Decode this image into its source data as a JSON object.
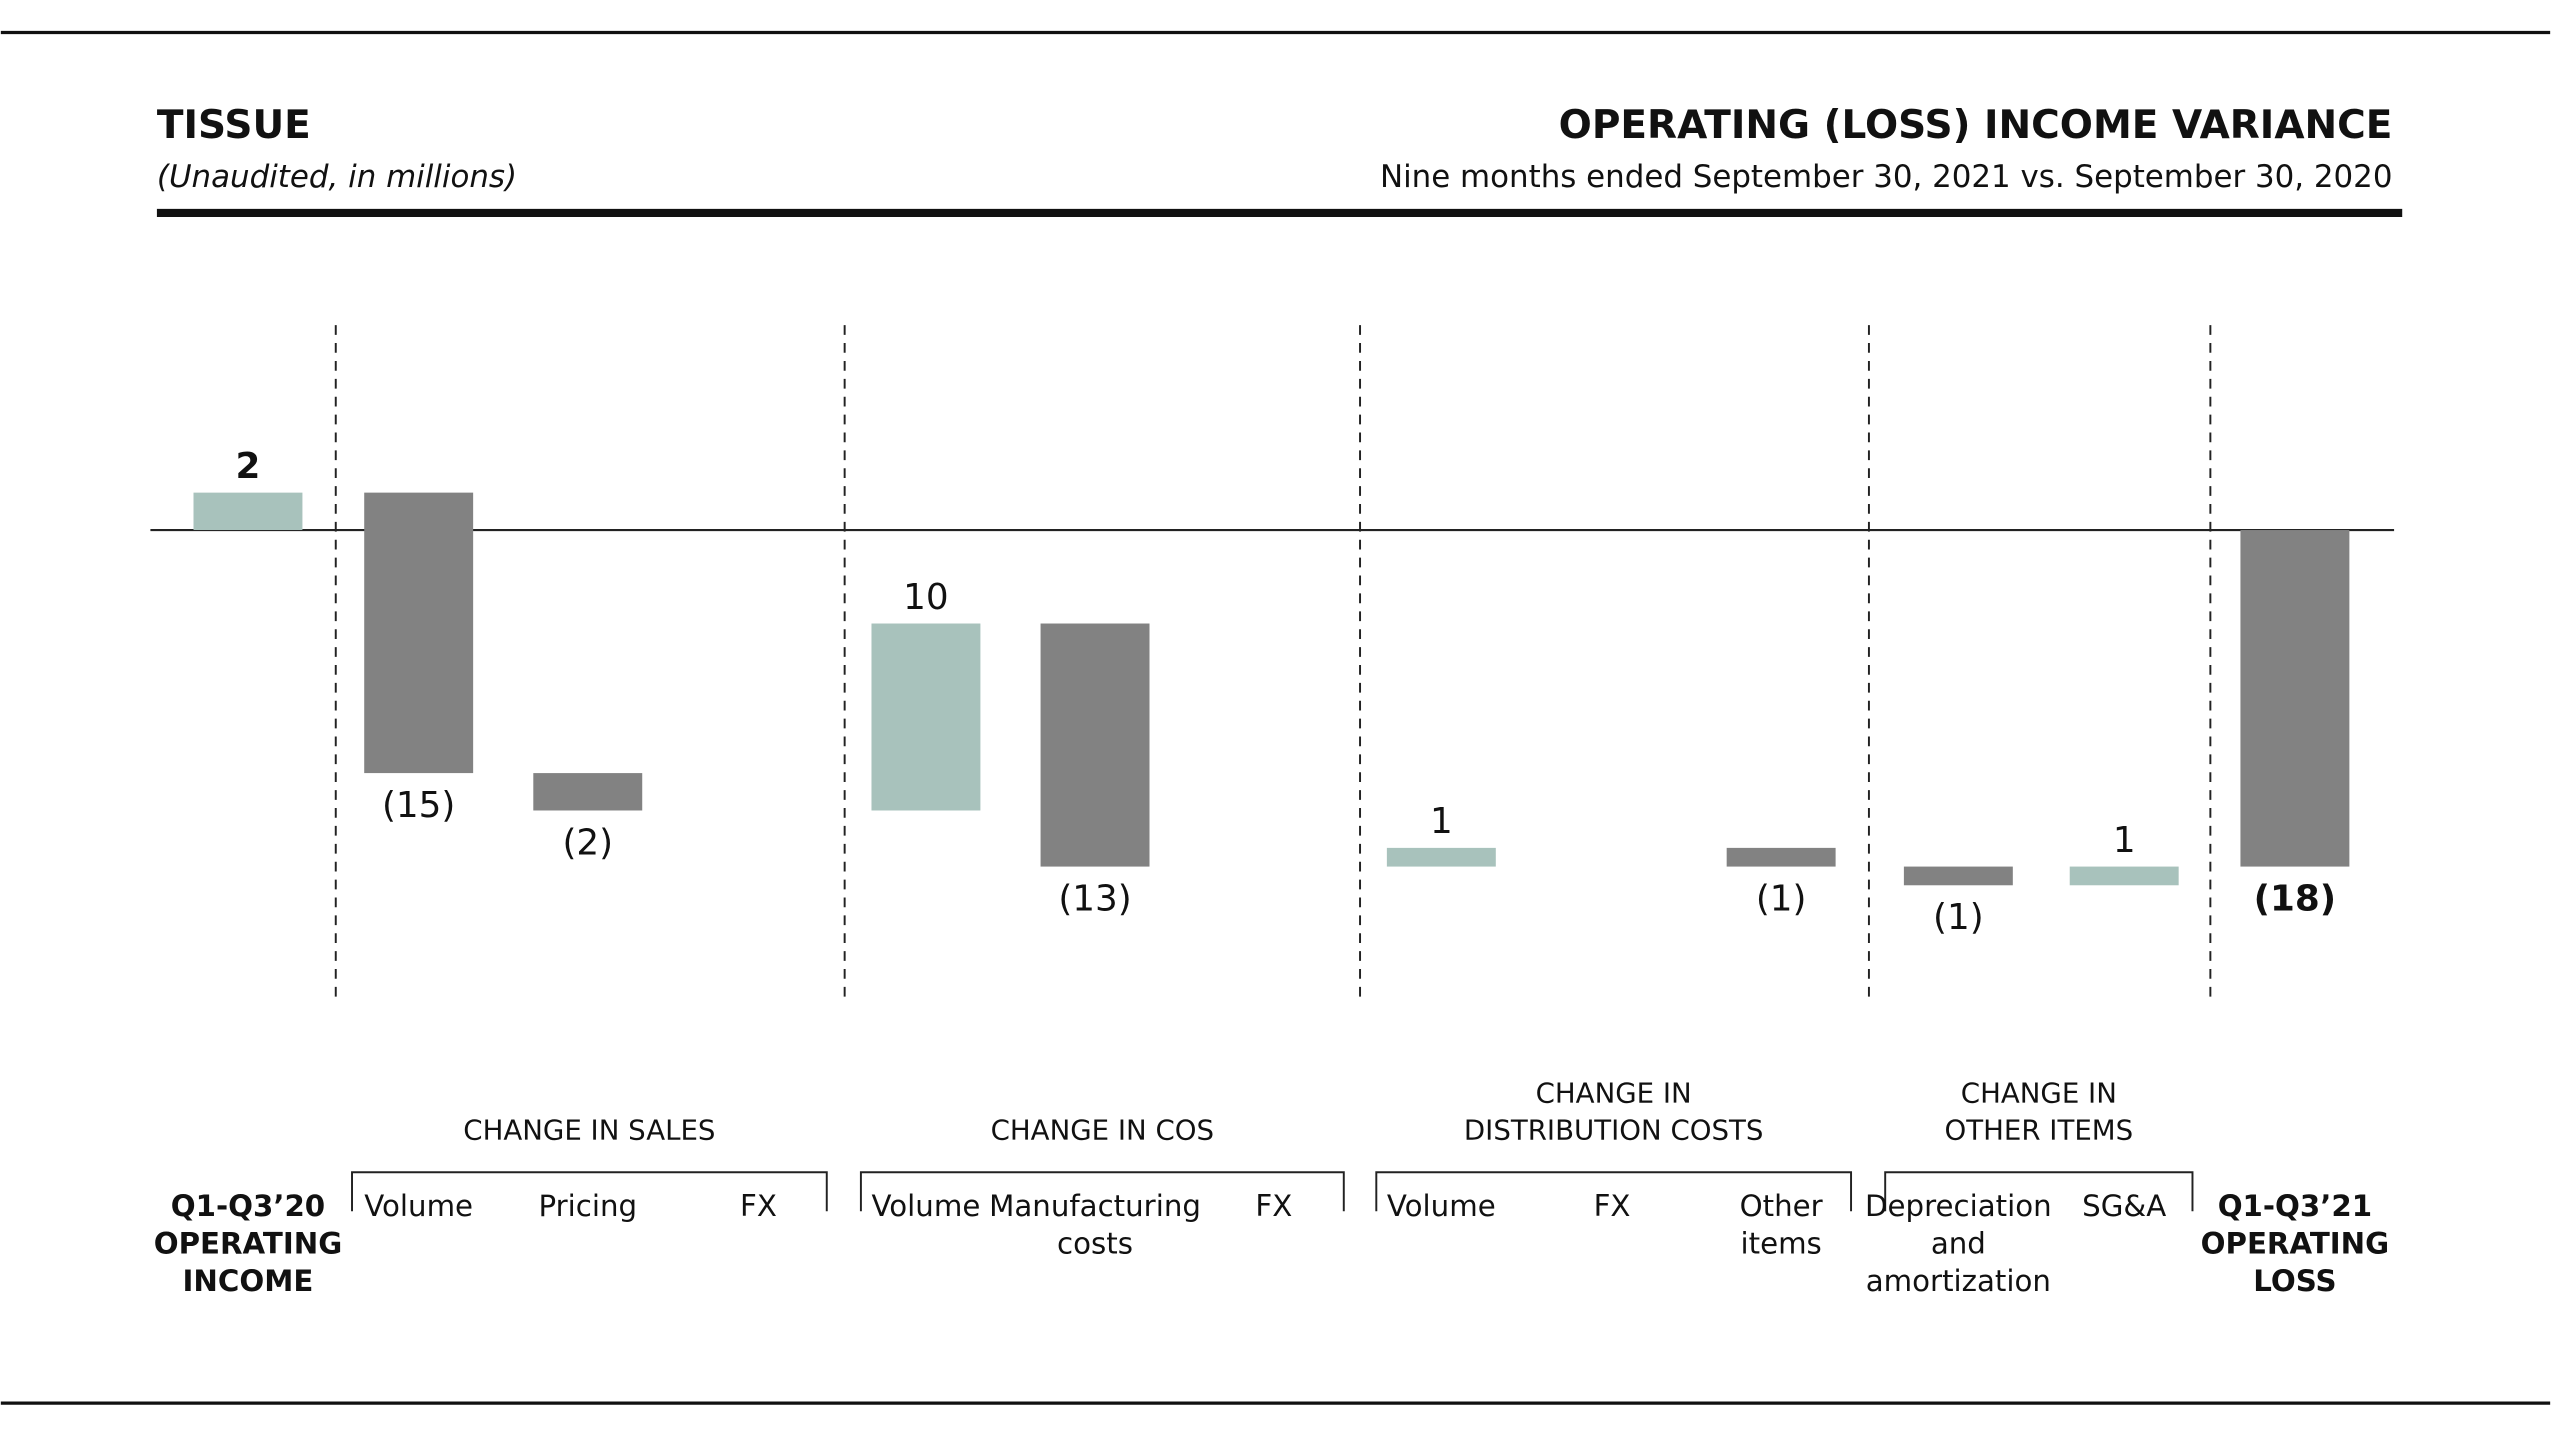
{
  "header": {
    "title": "TISSUE",
    "subtitle": "(Unaudited, in millions)",
    "right_title": "OPERATING (LOSS) INCOME VARIANCE",
    "right_subtitle": "Nine months ended September 30, 2021 vs. September 30, 2020"
  },
  "chart_data": {
    "type": "waterfall",
    "categories": [
      [
        "Q1-Q3’20",
        "OPERATING",
        "INCOME"
      ],
      [
        "Volume"
      ],
      [
        "Pricing"
      ],
      [
        "FX"
      ],
      [
        "Volume"
      ],
      [
        "Manufacturing",
        "costs"
      ],
      [
        "FX"
      ],
      [
        "Volume"
      ],
      [
        "FX"
      ],
      [
        "Other",
        "items"
      ],
      [
        "Depreciation",
        "and",
        "amortization"
      ],
      [
        "SG&A"
      ],
      [
        "Q1-Q3’21",
        "OPERATING",
        "LOSS"
      ]
    ],
    "values": [
      2,
      -15,
      -2,
      0,
      10,
      -13,
      0,
      1,
      0,
      -1,
      -1,
      1,
      -18
    ],
    "value_labels": [
      "2",
      "(15)",
      "(2)",
      null,
      "10",
      "(13)",
      null,
      "1",
      null,
      "(1)",
      "(1)",
      "1",
      "(18)"
    ],
    "is_total": [
      true,
      false,
      false,
      false,
      false,
      false,
      false,
      false,
      false,
      false,
      false,
      false,
      true
    ],
    "groups": [
      [
        "CHANGE IN SALES"
      ],
      [
        "CHANGE IN COS"
      ],
      [
        "CHANGE IN",
        "DISTRIBUTION COSTS"
      ],
      [
        "CHANGE IN",
        "OTHER ITEMS"
      ]
    ],
    "colors": {
      "increase": "#a8c2bc",
      "decrease": "#828282"
    }
  }
}
